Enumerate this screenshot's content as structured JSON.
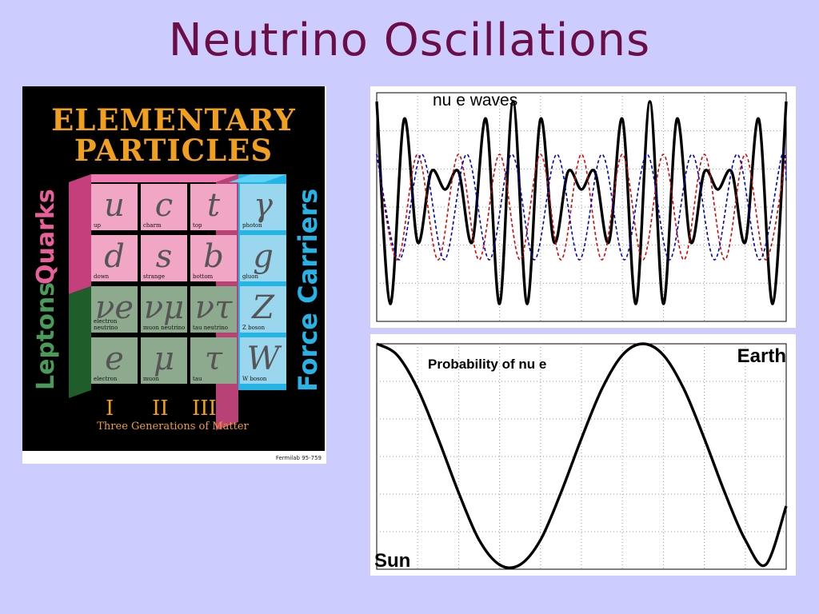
{
  "slide": {
    "title": "Neutrino Oscillations"
  },
  "poster": {
    "title_line1": "ELEMENTARY",
    "title_line2": "PARTICLES",
    "quarks_label": "Quarks",
    "leptons_label": "Leptons",
    "force_label": "Force Carriers",
    "cells": [
      {
        "symbol": "u",
        "name": "up"
      },
      {
        "symbol": "c",
        "name": "charm"
      },
      {
        "symbol": "t",
        "name": "top"
      },
      {
        "symbol": "d",
        "name": "down"
      },
      {
        "symbol": "s",
        "name": "strange"
      },
      {
        "symbol": "b",
        "name": "bottom"
      },
      {
        "symbol": "νe",
        "name": "electron neutrino"
      },
      {
        "symbol": "νμ",
        "name": "muon neutrino"
      },
      {
        "symbol": "ντ",
        "name": "tau neutrino"
      },
      {
        "symbol": "e",
        "name": "electron"
      },
      {
        "symbol": "μ",
        "name": "muon"
      },
      {
        "symbol": "τ",
        "name": "tau"
      }
    ],
    "bosons": [
      {
        "symbol": "γ",
        "name": "photon"
      },
      {
        "symbol": "g",
        "name": "gluon"
      },
      {
        "symbol": "Z",
        "name": "Z boson"
      },
      {
        "symbol": "W",
        "name": "W boson"
      }
    ],
    "generations": [
      "I",
      "II",
      "III"
    ],
    "generations_caption": "Three Generations of Matter",
    "credit": "Fermilab 95-759",
    "colors": {
      "quark": "#e8609a",
      "lepton": "#2e7a3a",
      "force": "#25b4e6",
      "title": "#f0a01e"
    }
  },
  "chart_data": [
    {
      "type": "line",
      "title": "nu e waves",
      "grid": true,
      "xlim": [
        0,
        1
      ],
      "ylim": [
        -1.3,
        1.3
      ],
      "series": [
        {
          "color": "#000000",
          "style": "solid",
          "x": [
            0,
            0.033,
            0.067,
            0.1,
            0.133,
            0.167,
            0.2,
            0.233,
            0.267,
            0.3,
            0.333,
            0.367,
            0.4,
            0.433,
            0.467,
            0.5,
            0.533,
            0.567,
            0.6,
            0.633,
            0.667,
            0.7,
            0.733,
            0.767,
            0.8,
            0.833,
            0.867,
            0.9,
            0.933,
            0.967,
            1.0
          ],
          "values": [
            1.2,
            -1.1,
            1.0,
            -0.4,
            0.4,
            0.2,
            0.4,
            -0.4,
            1.0,
            -1.1,
            1.2,
            -1.1,
            1.0,
            -0.4,
            0.4,
            0.2,
            0.4,
            -0.4,
            1.0,
            -1.1,
            1.2,
            -1.1,
            1.0,
            -0.4,
            0.4,
            0.2,
            0.4,
            -0.4,
            1.0,
            -1.1,
            1.2
          ]
        },
        {
          "color": "#dd0000",
          "style": "dashed",
          "x": [
            0,
            0.05,
            0.1,
            0.15,
            0.2,
            0.25,
            0.3,
            0.35,
            0.4,
            0.45,
            0.5,
            0.55,
            0.6,
            0.65,
            0.7,
            0.75,
            0.8,
            0.85,
            0.9,
            0.95,
            1.0
          ],
          "values": [
            0.6,
            -0.6,
            0.6,
            -0.6,
            0.6,
            -0.6,
            0.6,
            -0.6,
            0.6,
            -0.6,
            0.6,
            -0.6,
            0.6,
            -0.6,
            0.6,
            -0.6,
            0.6,
            -0.6,
            0.6,
            -0.6,
            0.6
          ]
        },
        {
          "color": "#0000cc",
          "style": "dashed",
          "x": [
            0,
            0.055,
            0.11,
            0.165,
            0.22,
            0.275,
            0.33,
            0.385,
            0.44,
            0.495,
            0.55,
            0.605,
            0.66,
            0.715,
            0.77,
            0.825,
            0.88,
            0.935,
            0.99,
            1.0
          ],
          "values": [
            0.6,
            -0.6,
            0.6,
            -0.6,
            0.6,
            -0.6,
            0.6,
            -0.6,
            0.6,
            -0.6,
            0.6,
            -0.6,
            0.6,
            -0.6,
            0.6,
            -0.6,
            0.6,
            -0.6,
            0.6,
            0.3
          ]
        }
      ]
    },
    {
      "type": "line",
      "title": "Probability of nu e",
      "start_label": "Sun",
      "end_label": "Earth",
      "grid": true,
      "xlim": [
        0,
        1
      ],
      "ylim": [
        0,
        1
      ],
      "series": [
        {
          "color": "#000000",
          "style": "solid",
          "x": [
            0,
            0.05,
            0.1,
            0.15,
            0.2,
            0.25,
            0.3,
            0.35,
            0.4,
            0.45,
            0.5,
            0.55,
            0.6,
            0.65,
            0.7,
            0.75,
            0.8,
            0.85,
            0.9,
            0.95,
            1.0
          ],
          "values": [
            1.0,
            0.95,
            0.8,
            0.58,
            0.34,
            0.13,
            0.02,
            0.02,
            0.13,
            0.34,
            0.58,
            0.8,
            0.95,
            1.0,
            0.95,
            0.8,
            0.58,
            0.34,
            0.13,
            0.02,
            0.28
          ]
        }
      ]
    }
  ]
}
